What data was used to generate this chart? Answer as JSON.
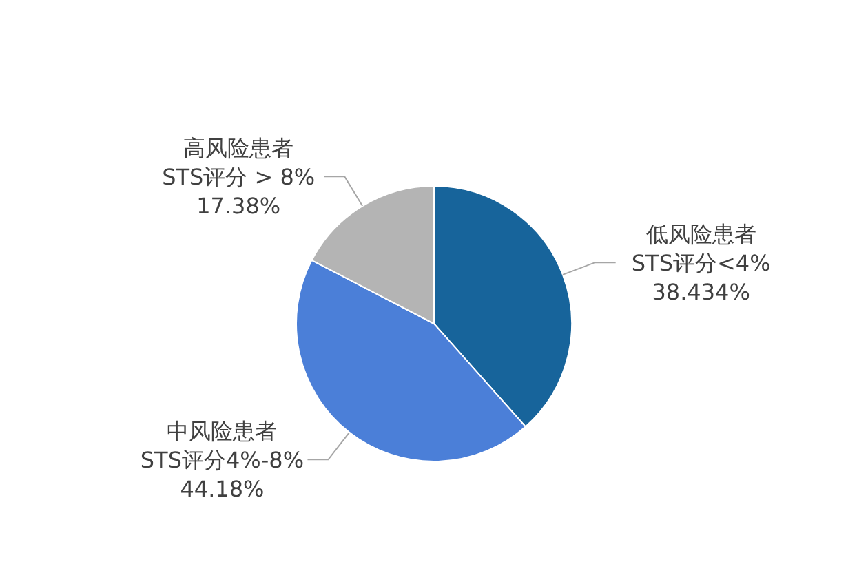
{
  "chart_data": {
    "type": "pie",
    "categories": [
      "低风险患者 STS评分<4%",
      "中风险患者 STS评分4%-8%",
      "高风险患者 STS评分 > 8%"
    ],
    "values": [
      38.434,
      44.18,
      17.38
    ],
    "colors": [
      "#17649b",
      "#4b7fd8",
      "#b4b4b4"
    ],
    "value_labels": [
      "38.434%",
      "44.18%",
      "17.38%"
    ]
  }
}
